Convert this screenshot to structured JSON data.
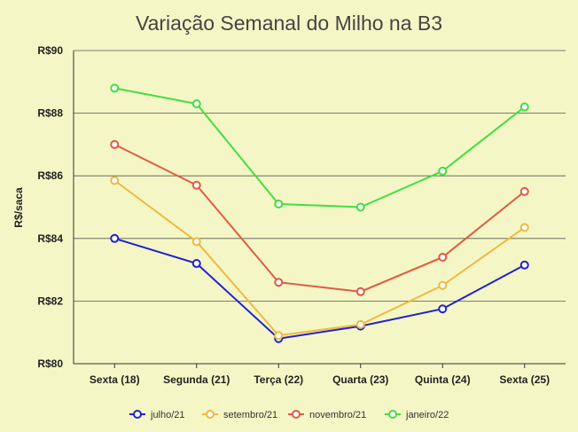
{
  "chart_data": {
    "type": "line",
    "title": "Variação Semanal do Milho na B3",
    "xlabel": "",
    "ylabel": "R$/saca",
    "categories": [
      "Sexta (18)",
      "Segunda (21)",
      "Terça (22)",
      "Quarta (23)",
      "Quinta (24)",
      "Sexta (25)"
    ],
    "ylim": [
      80,
      90
    ],
    "yticks": [
      80,
      82,
      84,
      86,
      88,
      90
    ],
    "ytick_labels": [
      "R$80",
      "R$82",
      "R$84",
      "R$86",
      "R$88",
      "R$90"
    ],
    "grid": true,
    "legend_position": "bottom",
    "series": [
      {
        "name": "julho/21",
        "color": "#2222cc",
        "values": [
          84.0,
          83.2,
          80.8,
          81.2,
          81.75,
          83.15
        ]
      },
      {
        "name": "setembro/21",
        "color": "#f0b840",
        "values": [
          85.85,
          83.9,
          80.9,
          81.25,
          82.5,
          84.35
        ]
      },
      {
        "name": "novembro/21",
        "color": "#e05a45",
        "values": [
          87.0,
          85.7,
          82.6,
          82.3,
          83.4,
          85.5
        ]
      },
      {
        "name": "janeiro/22",
        "color": "#44dd44",
        "values": [
          88.8,
          88.3,
          85.1,
          85.0,
          86.15,
          88.2
        ]
      }
    ]
  }
}
